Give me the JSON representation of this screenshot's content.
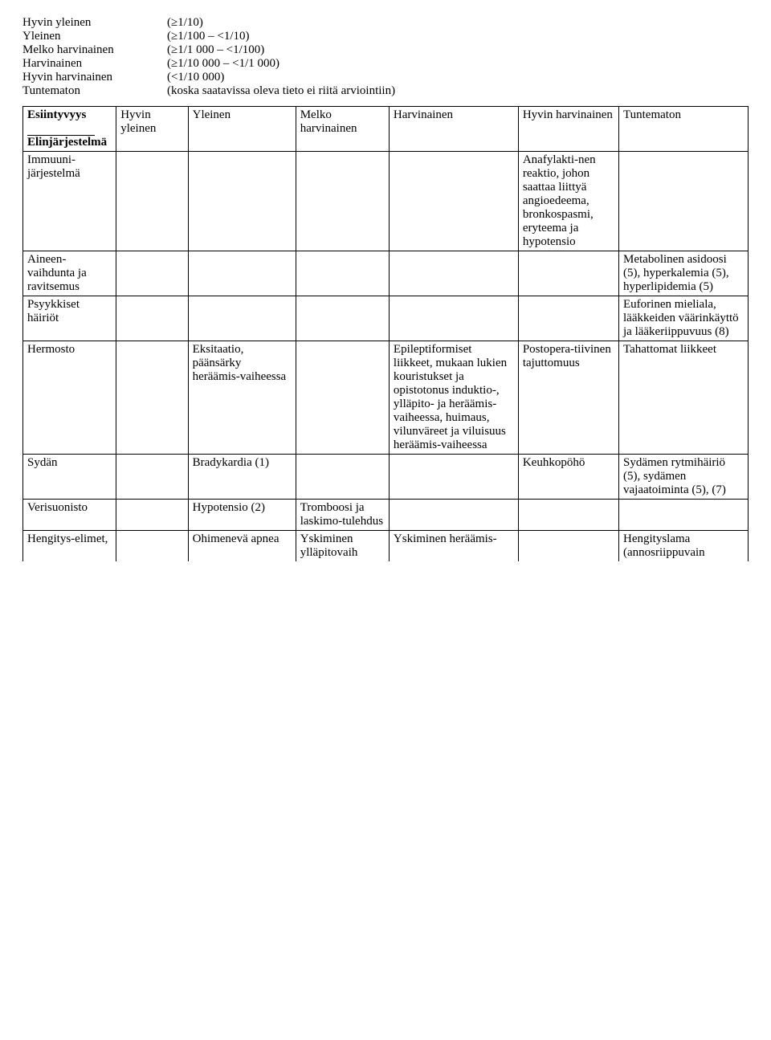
{
  "definitions": [
    {
      "label": "Hyvin yleinen",
      "value": "(≥1/10)"
    },
    {
      "label": "Yleinen",
      "value": "(≥1/100 – <1/10)"
    },
    {
      "label": "Melko harvinainen",
      "value": "(≥1/1 000 – <1/100)"
    },
    {
      "label": "Harvinainen",
      "value": "(≥1/10 000 – <1/1 000)"
    },
    {
      "label": "Hyvin harvinainen",
      "value": "(<1/10 000)"
    },
    {
      "label": "Tuntematon",
      "value": "(koska saatavissa oleva tieto ei riitä arviointiin)"
    }
  ],
  "table": {
    "headers": {
      "system_top": "Esiintyvyys",
      "system_bottom": "Elinjärjestelmä",
      "very_common": "Hyvin yleinen",
      "common": "Yleinen",
      "uncommon": "Melko harvinainen",
      "rare": "Harvinainen",
      "very_rare": "Hyvin harvinainen",
      "unknown": "Tuntematon"
    },
    "rows": [
      {
        "system": "Immuuni-järjestelmä",
        "very_common": "",
        "common": "",
        "uncommon": "",
        "rare": "",
        "very_rare": "Anafylakti-nen reaktio, johon saattaa liittyä angioedeema, bronkospasmi, eryteema ja hypotensio",
        "unknown": ""
      },
      {
        "system": "Aineen-vaihdunta ja ravitsemus",
        "very_common": "",
        "common": "",
        "uncommon": "",
        "rare": "",
        "very_rare": "",
        "unknown": "Metabolinen asidoosi (5), hyperkalemia (5), hyperlipidemia (5)"
      },
      {
        "system": "Psyykkiset häiriöt",
        "very_common": "",
        "common": "",
        "uncommon": "",
        "rare": "",
        "very_rare": "",
        "unknown": "Euforinen mieliala, lääkkeiden väärinkäyttö ja lääkeriippuvuus (8)"
      },
      {
        "system": "Hermosto",
        "very_common": "",
        "common": "Eksitaatio, päänsärky heräämis-vaiheessa",
        "uncommon": "",
        "rare": "Epileptiformiset liikkeet, mukaan lukien kouristukset ja opistotonus induktio-, ylläpito- ja heräämis-vaiheessa, huimaus, vilunväreet ja viluisuus heräämis-vaiheessa",
        "very_rare": "Postopera-tiivinen tajuttomuus",
        "unknown": "Tahattomat liikkeet"
      },
      {
        "system": "Sydän",
        "very_common": "",
        "common": "Bradykardia (1)",
        "uncommon": "",
        "rare": "",
        "very_rare": "Keuhkopöhö",
        "unknown": "Sydämen rytmihäiriö (5), sydämen vajaatoiminta (5), (7)"
      },
      {
        "system": "Verisuonisto",
        "very_common": "",
        "common": "Hypotensio (2)",
        "uncommon": "Tromboosi ja laskimo-tulehdus",
        "rare": "",
        "very_rare": "",
        "unknown": ""
      },
      {
        "system": "Hengitys-elimet,",
        "very_common": "",
        "common": "Ohimenevä apnea",
        "uncommon": "Yskiminen ylläpitovaih",
        "rare": "Yskiminen heräämis-",
        "very_rare": "",
        "unknown": "Hengityslama (annosriippuvain"
      }
    ]
  }
}
